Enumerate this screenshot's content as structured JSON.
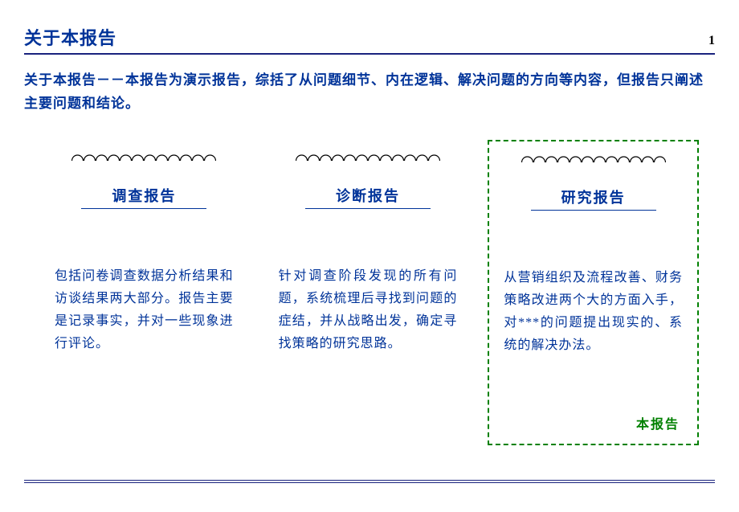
{
  "header": {
    "title": "关于本报告",
    "page_number": "1"
  },
  "intro": "关于本报告－－本报告为演示报告，综括了从问题细节、内在逻辑、解决问题的方向等内容，但报告只阐述主要问题和结论。",
  "cards": [
    {
      "title": "调查报告",
      "body": "包括问卷调查数据分析结果和访谈结果两大部分。报告主要是记录事实，并对一些现象进行评论。",
      "highlighted": false,
      "footer": ""
    },
    {
      "title": "诊断报告",
      "body": "针对调查阶段发现的所有问题，系统梳理后寻找到问题的症结，并从战略出发，确定寻找策略的研究思路。",
      "highlighted": false,
      "footer": ""
    },
    {
      "title": "研究报告",
      "body": "从营销组织及流程改善、财务策略改进两个大的方面入手，对***的问题提出现实的、系统的解决办法。",
      "highlighted": true,
      "footer": "本报告"
    }
  ],
  "style": {
    "page_bg": "#ffffff",
    "primary_color": "#003399",
    "rule_color": "#1a237e",
    "highlight_border": "#008000",
    "footer_color": "#008000",
    "spiral_color": "#000000",
    "title_fontsize": 22,
    "intro_fontsize": 17,
    "card_title_fontsize": 18,
    "card_body_fontsize": 16,
    "spiral_loops": 12
  }
}
